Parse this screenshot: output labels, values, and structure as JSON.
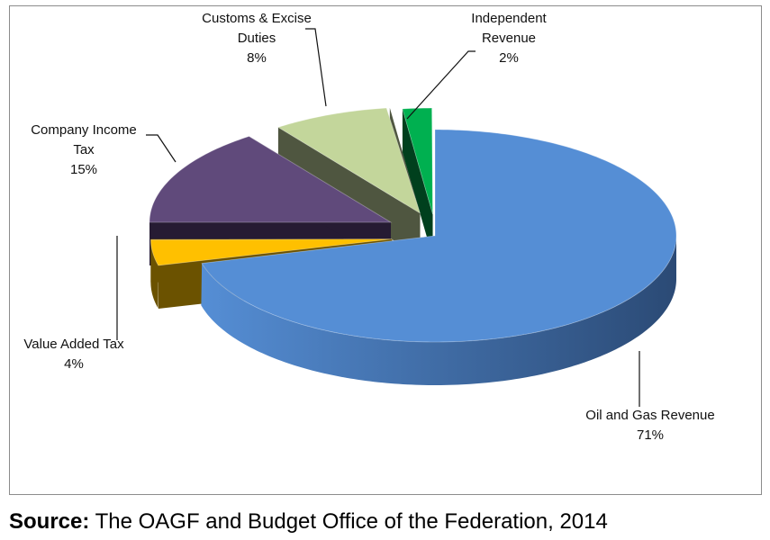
{
  "chart_data": {
    "type": "pie",
    "style": "3d-exploded",
    "slices": [
      {
        "label_lines": [
          "Oil and Gas Revenue"
        ],
        "pct_label": "71%",
        "value": 71,
        "color": "#558ed5",
        "side": "#2b4a75"
      },
      {
        "label_lines": [
          "Value Added Tax"
        ],
        "pct_label": "4%",
        "value": 4,
        "color": "#ffc000",
        "side": "#6b5200"
      },
      {
        "label_lines": [
          "Company Income",
          "Tax"
        ],
        "pct_label": "15%",
        "value": 15,
        "color": "#604a7b",
        "side": "#261b33"
      },
      {
        "label_lines": [
          "Customs & Excise",
          "Duties"
        ],
        "pct_label": "8%",
        "value": 8,
        "color": "#c3d69b",
        "side": "#4f5640"
      },
      {
        "label_lines": [
          "Independent",
          "Revenue"
        ],
        "pct_label": "2%",
        "value": 2,
        "color": "#00b050",
        "side": "#00401d"
      }
    ]
  },
  "source": {
    "prefix": "Source:",
    "text": " The OAGF and Budget Office of the Federation, 2014"
  }
}
